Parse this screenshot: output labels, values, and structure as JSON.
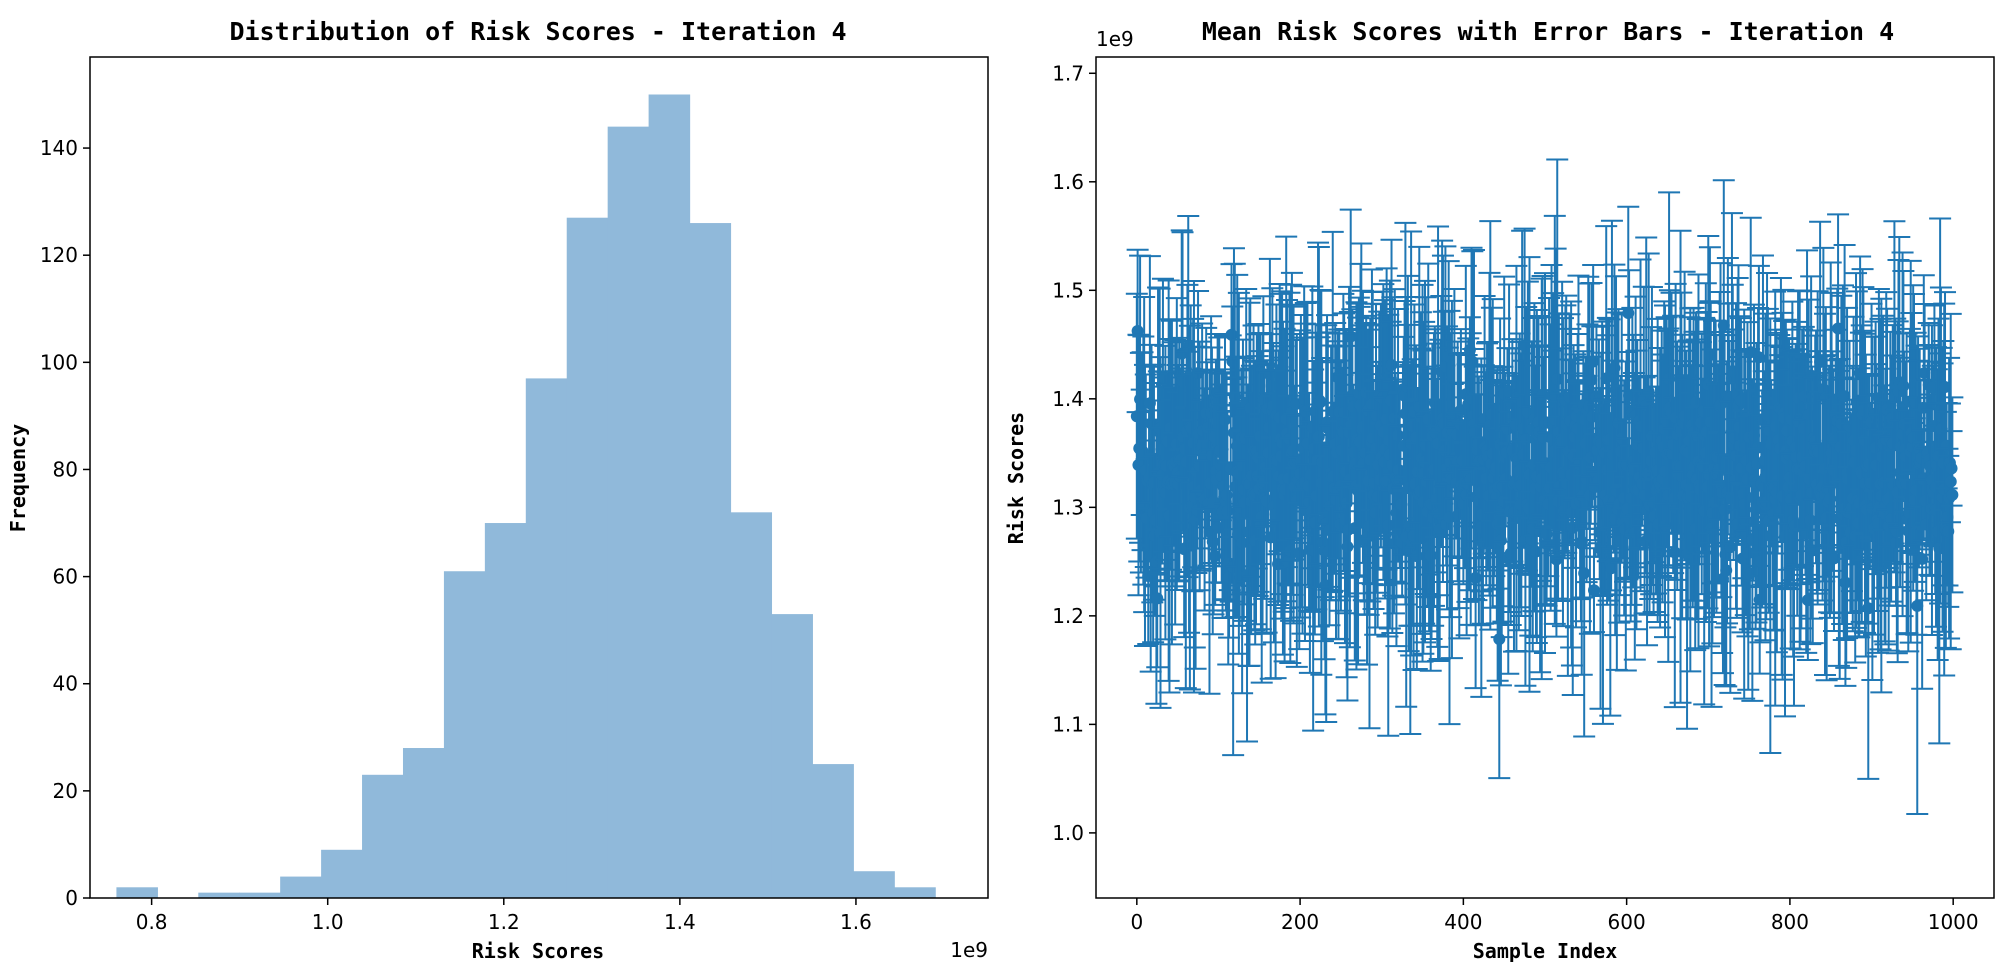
{
  "chart_data": [
    {
      "type": "histogram",
      "title": "Distribution of Risk Scores - Iteration 4",
      "xlabel": "Risk Scores",
      "ylabel": "Frequency",
      "x_offset_label": "1e9",
      "xlim": [
        0.73,
        1.75
      ],
      "ylim": [
        0,
        157
      ],
      "x_ticks": [
        0.8,
        1.0,
        1.2,
        1.4,
        1.6
      ],
      "x_tick_labels": [
        "0.8",
        "1.0",
        "1.2",
        "1.4",
        "1.6"
      ],
      "y_ticks": [
        0,
        20,
        40,
        60,
        80,
        100,
        120,
        140
      ],
      "y_tick_labels": [
        "0",
        "20",
        "40",
        "60",
        "80",
        "100",
        "120",
        "140"
      ],
      "bin_start": 0.76,
      "bin_width": 0.0465,
      "counts": [
        2,
        0,
        1,
        1,
        4,
        9,
        23,
        28,
        61,
        70,
        97,
        127,
        144,
        150,
        126,
        72,
        53,
        25,
        5,
        2
      ],
      "color": "#90b9da"
    },
    {
      "type": "errorbar",
      "title": "Mean Risk Scores with Error Bars - Iteration 4",
      "xlabel": "Sample Index",
      "ylabel": "Risk Scores",
      "y_offset_label": "1e9",
      "xlim": [
        -50,
        1050
      ],
      "ylim": [
        0.94,
        1.715
      ],
      "x_ticks": [
        0,
        200,
        400,
        600,
        800,
        1000
      ],
      "x_tick_labels": [
        "0",
        "200",
        "400",
        "600",
        "800",
        "1000"
      ],
      "y_ticks": [
        1.0,
        1.1,
        1.2,
        1.3,
        1.4,
        1.5,
        1.6,
        1.7
      ],
      "y_tick_labels": [
        "1.0",
        "1.1",
        "1.2",
        "1.3",
        "1.4",
        "1.5",
        "1.6",
        "1.7"
      ],
      "n_samples": 1000,
      "mean_center": 1.335,
      "mean_spread": 0.045,
      "error_center": 0.1,
      "error_spread": 0.04,
      "color": "#1f77b4"
    }
  ]
}
